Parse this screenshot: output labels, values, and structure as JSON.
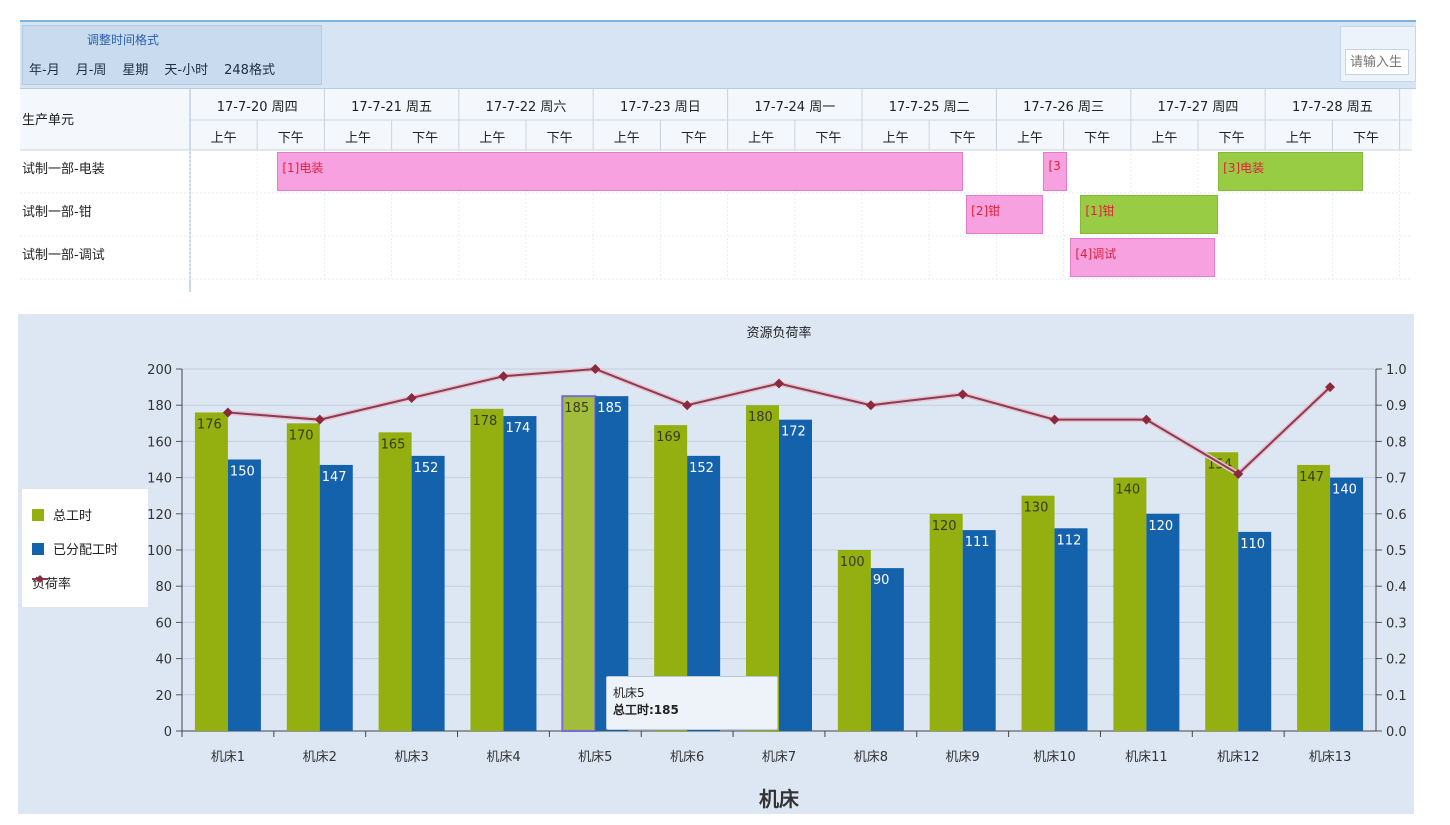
{
  "toolbar": {
    "format_group_title": "调整时间格式",
    "format_buttons": [
      "年-月",
      "月-周",
      "星期",
      "天-小时",
      "248格式"
    ],
    "search_placeholder": "请输入生"
  },
  "gantt": {
    "unit_header": "生产单元",
    "days": [
      "17-7-20 周四",
      "17-7-21 周五",
      "17-7-22 周六",
      "17-7-23 周日",
      "17-7-24 周一",
      "17-7-25 周二",
      "17-7-26 周三",
      "17-7-27 周四",
      "17-7-28 周五"
    ],
    "half_labels": [
      "上午",
      "下午"
    ],
    "rows": [
      "试制一部-电装",
      "试制一部-钳",
      "试制一部-调试"
    ],
    "tasks": [
      {
        "row": 0,
        "label": "[1]电装",
        "color": "pink",
        "start_slot": 1.3,
        "end_slot": 11.5
      },
      {
        "row": 0,
        "label": "[3",
        "color": "pink",
        "start_slot": 12.7,
        "end_slot": 13.05
      },
      {
        "row": 0,
        "label": "[3]电装",
        "color": "green",
        "start_slot": 15.3,
        "end_slot": 17.45
      },
      {
        "row": 1,
        "label": "[2]钳",
        "color": "pink",
        "start_slot": 11.55,
        "end_slot": 12.7
      },
      {
        "row": 1,
        "label": "[1]钳",
        "color": "green",
        "start_slot": 13.25,
        "end_slot": 15.3
      },
      {
        "row": 2,
        "label": "[4]调试",
        "color": "pink",
        "start_slot": 13.1,
        "end_slot": 15.25
      }
    ]
  },
  "chart_data": {
    "type": "bar",
    "title": "资源负荷率",
    "xlabel": "机床",
    "categories": [
      "机床1",
      "机床2",
      "机床3",
      "机床4",
      "机床5",
      "机床6",
      "机床7",
      "机床8",
      "机床9",
      "机床10",
      "机床11",
      "机床12",
      "机床13"
    ],
    "series": [
      {
        "name": "总工时",
        "type": "bar",
        "color": "#93b010",
        "values": [
          176,
          170,
          165,
          178,
          185,
          169,
          180,
          100,
          120,
          130,
          140,
          154,
          147
        ]
      },
      {
        "name": "已分配工时",
        "type": "bar",
        "color": "#1462ac",
        "values": [
          150,
          147,
          152,
          174,
          185,
          152,
          172,
          90,
          111,
          112,
          120,
          110,
          140
        ]
      },
      {
        "name": "负荷率",
        "type": "line",
        "axis": "right",
        "color": "#8a3c56",
        "values": [
          0.88,
          0.86,
          0.92,
          0.98,
          1.0,
          0.9,
          0.96,
          0.9,
          0.93,
          0.86,
          0.86,
          0.71,
          0.95
        ]
      }
    ],
    "ylim": [
      0,
      200
    ],
    "yticks": [
      0,
      20,
      40,
      60,
      80,
      100,
      120,
      140,
      160,
      180,
      200
    ],
    "y2lim": [
      0,
      1.0
    ],
    "y2ticks": [
      "0.0",
      "0.1",
      "0.2",
      "0.3",
      "0.4",
      "0.5",
      "0.6",
      "0.7",
      "0.8",
      "0.9",
      "1.0"
    ],
    "grid": true,
    "legend": "left",
    "highlight_index": 4,
    "tooltip": {
      "category": "机床5",
      "text": "总工时:185"
    }
  }
}
